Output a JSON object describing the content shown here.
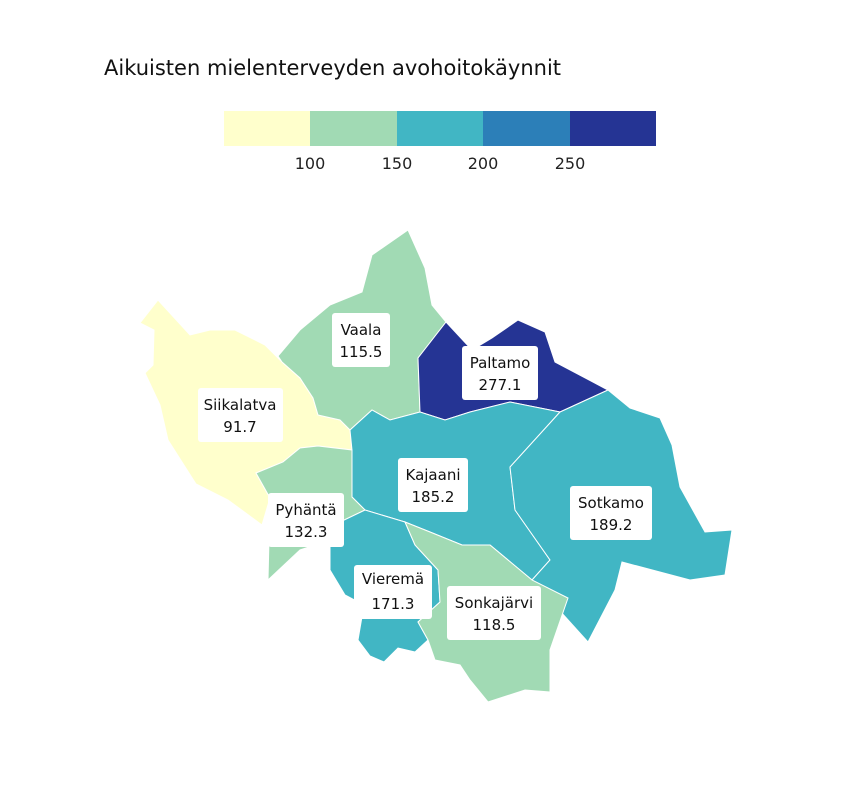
{
  "map": {
    "title": "Aikuisten mielenterveyden avohoitokäynnit",
    "legend": {
      "colors": [
        "#ffffcc",
        "#a1dab4",
        "#41b6c4",
        "#2c7fb8",
        "#253494"
      ],
      "ticks": [
        "100",
        "150",
        "200",
        "250"
      ]
    },
    "regions": [
      {
        "name": "Siikalatva",
        "value": "91.7",
        "color": "#ffffcc"
      },
      {
        "name": "Vaala",
        "value": "115.5",
        "color": "#a1dab4"
      },
      {
        "name": "Paltamo",
        "value": "277.1",
        "color": "#253494"
      },
      {
        "name": "Kajaani",
        "value": "185.2",
        "color": "#41b6c4"
      },
      {
        "name": "Sotkamo",
        "value": "189.2",
        "color": "#41b6c4"
      },
      {
        "name": "Pyhäntä",
        "value": "132.3",
        "color": "#a1dab4"
      },
      {
        "name": "Vieremä",
        "value": "171.3",
        "color": "#41b6c4"
      },
      {
        "name": "Sonkajärvi",
        "value": "118.5",
        "color": "#a1dab4"
      }
    ]
  }
}
